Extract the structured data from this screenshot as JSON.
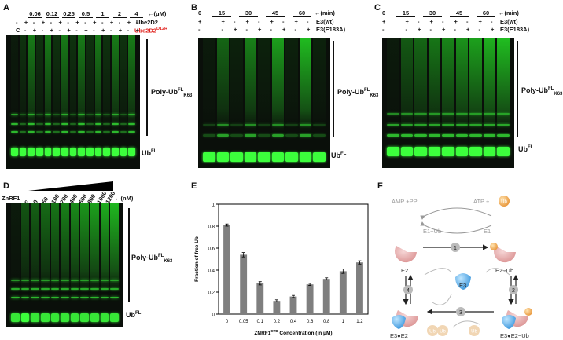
{
  "panels": {
    "A": {
      "label": "A",
      "conc_values": [
        "0.06",
        "0.12",
        "0.25",
        "0.5",
        "1",
        "2",
        "4"
      ],
      "conc_unit": "←(μM)",
      "rows": [
        {
          "name": "Ube2D2",
          "marks": [
            "-",
            "+",
            "-",
            "+",
            "-",
            "+",
            "-",
            "+",
            "-",
            "+",
            "-",
            "+",
            "-",
            "+",
            "-"
          ]
        },
        {
          "name": "Ube2D2",
          "suffix": "D12R",
          "marks": [
            "C",
            "-",
            "+",
            "-",
            "+",
            "-",
            "+",
            "-",
            "+",
            "-",
            "+",
            "-",
            "+",
            "-",
            "+"
          ]
        }
      ],
      "polyub_label": "Poly-Ub",
      "polyub_sup": "FL",
      "polyub_sub": "K63",
      "ub_label": "Ub",
      "ub_sup": "FL"
    },
    "B": {
      "label": "B",
      "time_values": [
        "0",
        "15",
        "30",
        "45",
        "60"
      ],
      "time_unit": "←(min)",
      "row1_name": "E3(wt)",
      "row2_name": "E3(E183A)",
      "polyub_label": "Poly-Ub",
      "polyub_sup": "FL",
      "polyub_sub": "K63",
      "ub_label": "Ub",
      "ub_sup": "FL"
    },
    "C": {
      "label": "C",
      "time_values": [
        "0",
        "15",
        "30",
        "45",
        "60"
      ],
      "time_unit": "←(min)",
      "row1_name": "E3(wt)",
      "row2_name": "E3(E183A)",
      "polyub_label": "Poly-Ub",
      "polyub_sup": "FL",
      "polyub_sub": "K63",
      "ub_label": "Ub",
      "ub_sup": "FL"
    },
    "D": {
      "label": "D",
      "row_name": "ZnRF1",
      "conc_values": [
        "c",
        "0",
        "50",
        "100",
        "200",
        "400",
        "600",
        "800",
        "1000",
        "1200"
      ],
      "conc_unit": "←(nM)",
      "polyub_label": "Poly-Ub",
      "polyub_sup": "FL",
      "polyub_sub": "K63",
      "ub_label": "Ub",
      "ub_sup": "FL"
    },
    "E": {
      "label": "E"
    },
    "F": {
      "label": "F",
      "amp": "AMP +PPi",
      "atp": "ATP +",
      "ub_ball": "Ub",
      "e1ub": "E1~Ub",
      "e1": "E1",
      "e2": "E2",
      "e2ub": "E2~Ub",
      "e3": "E3",
      "e3e2": "E3●E2",
      "e3e2ub": "E3●E2~Ub",
      "steps": [
        "1",
        "2",
        "3",
        "4"
      ],
      "ub_chain": [
        "Ub",
        "Ub",
        "Ub"
      ]
    }
  },
  "chart_data": {
    "type": "bar",
    "categories": [
      "0",
      "0.05",
      "0.1",
      "0.2",
      "0.4",
      "0.6",
      "0.8",
      "1",
      "1.2"
    ],
    "values": [
      0.81,
      0.54,
      0.28,
      0.12,
      0.16,
      0.27,
      0.32,
      0.39,
      0.47
    ],
    "errors": [
      0.01,
      0.02,
      0.015,
      0.01,
      0.01,
      0.01,
      0.01,
      0.02,
      0.015
    ],
    "xlabel": "ZNRF1",
    "xlabel_sup": "CTD",
    "xlabel_rest": " Concentration (in μM)",
    "ylabel": "Fraction of free Ub",
    "ylim": [
      0,
      1
    ],
    "yticks": [
      "0",
      "0.2",
      "0.4",
      "0.6",
      "0.8",
      "1"
    ],
    "bar_color": "#7f7f7f"
  }
}
